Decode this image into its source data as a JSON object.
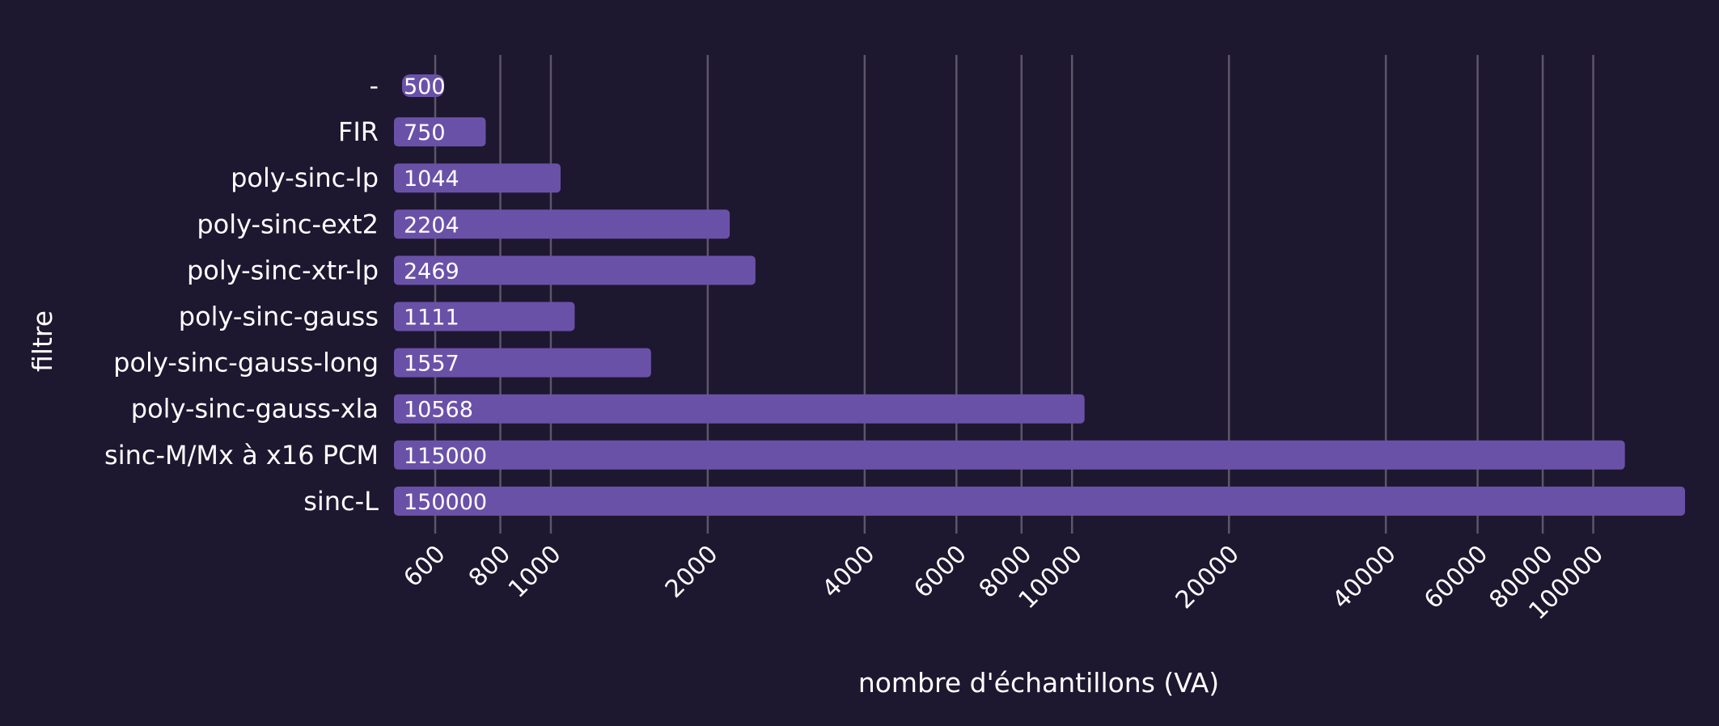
{
  "chart_data": {
    "type": "bar",
    "orientation": "horizontal",
    "scale": "log",
    "categories": [
      "-",
      "FIR",
      "poly-sinc-lp",
      "poly-sinc-ext2",
      "poly-sinc-xtr-lp",
      "poly-sinc-gauss",
      "poly-sinc-gauss-long",
      "poly-sinc-gauss-xla",
      "sinc-M/Mx à x16 PCM",
      "sinc-L"
    ],
    "values": [
      500,
      750,
      1044,
      2204,
      2469,
      1111,
      1557,
      10568,
      115000,
      150000
    ],
    "value_labels": [
      "500",
      "750",
      "1044",
      "2204",
      "2469",
      "1111",
      "1557",
      "10568",
      "115000",
      "150000"
    ],
    "xlabel": "nombre d'échantillons (VA)",
    "ylabel": "filtre",
    "xticks": [
      600,
      800,
      1000,
      2000,
      4000,
      6000,
      8000,
      10000,
      20000,
      40000,
      60000,
      80000,
      100000
    ],
    "xtick_labels": [
      "600",
      "800",
      "1000",
      "2000",
      "4000",
      "6000",
      "8000",
      "10000",
      "20000",
      "40000",
      "60000",
      "80000",
      "100000"
    ],
    "xlim": [
      500,
      150000
    ],
    "grid": "vertical",
    "colors": {
      "background": "#1e1730",
      "bar": "#6a51a8",
      "grid": "#5c5668",
      "text": "#ffffff"
    }
  }
}
